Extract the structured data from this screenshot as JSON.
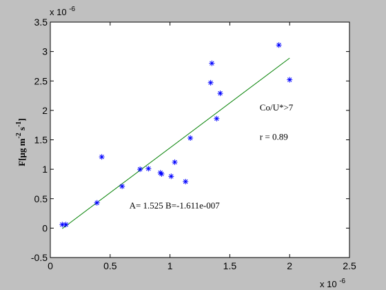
{
  "chart_data": {
    "type": "scatter",
    "xlim": [
      0,
      2.5
    ],
    "ylim": [
      -0.5,
      3.5
    ],
    "x_ticks": [
      0,
      0.5,
      1,
      1.5,
      2,
      2.5
    ],
    "y_ticks": [
      -0.5,
      0,
      0.5,
      1,
      1.5,
      2,
      2.5,
      3,
      3.5
    ],
    "x_tick_labels": [
      "0",
      "0.5",
      "1",
      "1.5",
      "2",
      "2.5"
    ],
    "y_tick_labels": [
      "-0.5",
      "0",
      "0.5",
      "1",
      "1.5",
      "2",
      "2.5",
      "3",
      "3.5"
    ],
    "x_multiplier": "x 10",
    "x_multiplier_exp": "-6",
    "y_multiplier": "x 10",
    "y_multiplier_exp": "-6",
    "ylabel": {
      "base": "F[μg m",
      "exp1": "-2",
      "mid": " s",
      "exp2": "-1",
      "end": "]"
    },
    "grid": false,
    "points": {
      "marker": "*",
      "color": "#0000ff",
      "x": [
        0.1,
        0.13,
        0.39,
        0.43,
        0.6,
        0.75,
        0.82,
        0.92,
        0.93,
        1.01,
        1.04,
        1.13,
        1.17,
        1.34,
        1.35,
        1.39,
        1.42,
        1.91,
        2.0
      ],
      "y": [
        0.06,
        0.06,
        0.43,
        1.21,
        0.71,
        1.0,
        1.01,
        0.94,
        0.92,
        0.88,
        1.12,
        0.79,
        1.53,
        2.47,
        2.8,
        1.86,
        2.29,
        3.11,
        2.52
      ]
    },
    "fit_line": {
      "color": "#008000",
      "x": [
        0.1,
        2.0
      ],
      "y": [
        -0.0088,
        2.8889
      ]
    },
    "annotations": [
      {
        "text": "Co/U*>7",
        "x": 1.75,
        "y": 2.0
      },
      {
        "text": "r = 0.89",
        "x": 1.75,
        "y": 1.5
      },
      {
        "text": "A= 1.525  B=-1.611e-007",
        "x": 0.66,
        "y": 0.33
      }
    ]
  }
}
